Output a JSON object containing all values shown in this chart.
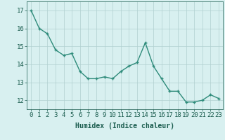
{
  "x": [
    0,
    1,
    2,
    3,
    4,
    5,
    6,
    7,
    8,
    9,
    10,
    11,
    12,
    13,
    14,
    15,
    16,
    17,
    18,
    19,
    20,
    21,
    22,
    23
  ],
  "y": [
    17.0,
    16.0,
    15.7,
    14.8,
    14.5,
    14.6,
    13.6,
    13.2,
    13.2,
    13.3,
    13.2,
    13.6,
    13.9,
    14.1,
    15.2,
    13.9,
    13.2,
    12.5,
    12.5,
    11.9,
    11.9,
    12.0,
    12.3,
    12.1
  ],
  "line_color": "#2e8b7a",
  "marker": "+",
  "bg_color": "#d8f0f0",
  "grid_color": "#b0d0d0",
  "xlabel": "Humidex (Indice chaleur)",
  "xlim": [
    -0.5,
    23.5
  ],
  "ylim": [
    11.5,
    17.5
  ],
  "yticks": [
    12,
    13,
    14,
    15,
    16,
    17
  ],
  "xticks": [
    0,
    1,
    2,
    3,
    4,
    5,
    6,
    7,
    8,
    9,
    10,
    11,
    12,
    13,
    14,
    15,
    16,
    17,
    18,
    19,
    20,
    21,
    22,
    23
  ],
  "tick_color": "#1a5c4e",
  "label_color": "#1a5c4e",
  "label_fontsize": 7,
  "tick_fontsize": 6.5,
  "linewidth": 1.0,
  "markersize": 3
}
